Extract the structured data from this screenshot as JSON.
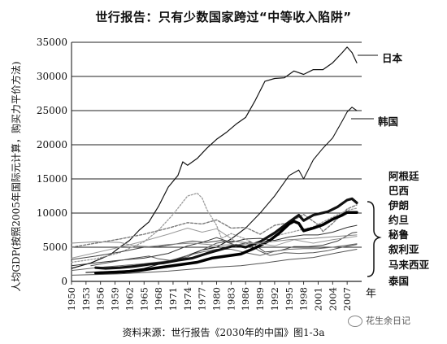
{
  "title": "世行报告：只有少数国家跨过“中等收入陷阱”",
  "source": "资料来源：世行报告《2030年的中国》图1-3a",
  "watermark": "花生余日记",
  "chart_data": {
    "type": "line",
    "ylabel": "人均GDP(按照2005年国际元计算，购买力平价方法)",
    "x_unit": "年",
    "ylim": [
      0,
      35000
    ],
    "xlim": [
      1950,
      2010
    ],
    "y_ticks": [
      0,
      5000,
      10000,
      15000,
      20000,
      25000,
      30000,
      35000
    ],
    "x_ticks": [
      1950,
      1953,
      1956,
      1959,
      1962,
      1965,
      1968,
      1971,
      1974,
      1977,
      1980,
      1983,
      1986,
      1989,
      1992,
      1995,
      1998,
      2001,
      2004,
      2007
    ],
    "grid": "horizontal",
    "series": [
      {
        "name": "日本",
        "color": "#111111",
        "width": 1.2,
        "points": [
          [
            1950,
            1900
          ],
          [
            1952,
            2300
          ],
          [
            1954,
            2700
          ],
          [
            1956,
            3300
          ],
          [
            1958,
            3900
          ],
          [
            1960,
            5000
          ],
          [
            1962,
            6000
          ],
          [
            1964,
            7500
          ],
          [
            1966,
            8700
          ],
          [
            1968,
            11000
          ],
          [
            1970,
            13800
          ],
          [
            1972,
            15500
          ],
          [
            1973,
            17500
          ],
          [
            1974,
            17000
          ],
          [
            1976,
            18000
          ],
          [
            1978,
            19500
          ],
          [
            1980,
            20800
          ],
          [
            1982,
            21800
          ],
          [
            1984,
            23000
          ],
          [
            1986,
            24000
          ],
          [
            1988,
            26500
          ],
          [
            1990,
            29300
          ],
          [
            1992,
            29700
          ],
          [
            1994,
            29800
          ],
          [
            1996,
            30800
          ],
          [
            1998,
            30300
          ],
          [
            2000,
            31000
          ],
          [
            2002,
            31000
          ],
          [
            2004,
            32000
          ],
          [
            2006,
            33500
          ],
          [
            2007,
            34300
          ],
          [
            2008,
            33500
          ],
          [
            2009,
            32000
          ]
        ]
      },
      {
        "name": "韩国",
        "color": "#111111",
        "width": 1.1,
        "points": [
          [
            1953,
            1300
          ],
          [
            1956,
            1400
          ],
          [
            1959,
            1500
          ],
          [
            1962,
            1600
          ],
          [
            1965,
            1900
          ],
          [
            1968,
            2500
          ],
          [
            1971,
            3000
          ],
          [
            1974,
            3800
          ],
          [
            1977,
            4600
          ],
          [
            1980,
            5000
          ],
          [
            1983,
            6200
          ],
          [
            1986,
            7800
          ],
          [
            1989,
            10000
          ],
          [
            1992,
            12500
          ],
          [
            1995,
            15500
          ],
          [
            1997,
            16300
          ],
          [
            1998,
            15000
          ],
          [
            2000,
            17800
          ],
          [
            2002,
            19500
          ],
          [
            2004,
            21000
          ],
          [
            2006,
            23500
          ],
          [
            2007,
            24800
          ],
          [
            2008,
            25500
          ],
          [
            2009,
            25000
          ]
        ]
      },
      {
        "name": "阿根廷",
        "color": "#7a7a7a",
        "width": 1.4,
        "dash": "3,2",
        "points": [
          [
            1950,
            5000
          ],
          [
            1955,
            5600
          ],
          [
            1960,
            6200
          ],
          [
            1965,
            6900
          ],
          [
            1970,
            7800
          ],
          [
            1974,
            8600
          ],
          [
            1977,
            8400
          ],
          [
            1980,
            9000
          ],
          [
            1983,
            7800
          ],
          [
            1986,
            7900
          ],
          [
            1989,
            6900
          ],
          [
            1992,
            8200
          ],
          [
            1995,
            8600
          ],
          [
            1998,
            9800
          ],
          [
            2001,
            8300
          ],
          [
            2002,
            7300
          ],
          [
            2004,
            8500
          ],
          [
            2007,
            10600
          ],
          [
            2009,
            11200
          ]
        ]
      },
      {
        "name": "巴西",
        "color": "#333333",
        "width": 1.0,
        "points": [
          [
            1950,
            2300
          ],
          [
            1955,
            2700
          ],
          [
            1960,
            3100
          ],
          [
            1965,
            3400
          ],
          [
            1970,
            4100
          ],
          [
            1974,
            5200
          ],
          [
            1977,
            5700
          ],
          [
            1980,
            6400
          ],
          [
            1983,
            5700
          ],
          [
            1986,
            6200
          ],
          [
            1989,
            6300
          ],
          [
            1992,
            6000
          ],
          [
            1995,
            6500
          ],
          [
            1998,
            6800
          ],
          [
            2001,
            6800
          ],
          [
            2004,
            7200
          ],
          [
            2007,
            7900
          ],
          [
            2009,
            8200
          ]
        ]
      },
      {
        "name": "伊朗",
        "color": "#9a9a9a",
        "width": 1.3,
        "dash": "2,2",
        "points": [
          [
            1950,
            2800
          ],
          [
            1955,
            3300
          ],
          [
            1960,
            4200
          ],
          [
            1965,
            5800
          ],
          [
            1968,
            7500
          ],
          [
            1971,
            9800
          ],
          [
            1974,
            12500
          ],
          [
            1976,
            12900
          ],
          [
            1977,
            12200
          ],
          [
            1978,
            10500
          ],
          [
            1980,
            8200
          ],
          [
            1981,
            6300
          ],
          [
            1983,
            7000
          ],
          [
            1986,
            6200
          ],
          [
            1988,
            5400
          ],
          [
            1990,
            5800
          ],
          [
            1993,
            6800
          ],
          [
            1996,
            7300
          ],
          [
            2000,
            8000
          ],
          [
            2004,
            9400
          ],
          [
            2007,
            10400
          ],
          [
            2009,
            10700
          ]
        ]
      },
      {
        "name": "约旦",
        "color": "#555555",
        "width": 1.0,
        "points": [
          [
            1954,
            2300
          ],
          [
            1958,
            2800
          ],
          [
            1962,
            3300
          ],
          [
            1966,
            3700
          ],
          [
            1968,
            3300
          ],
          [
            1971,
            3000
          ],
          [
            1974,
            3600
          ],
          [
            1977,
            4600
          ],
          [
            1980,
            5600
          ],
          [
            1983,
            5900
          ],
          [
            1986,
            5700
          ],
          [
            1989,
            4400
          ],
          [
            1991,
            3800
          ],
          [
            1994,
            4200
          ],
          [
            1997,
            4100
          ],
          [
            2000,
            4200
          ],
          [
            2003,
            4500
          ],
          [
            2006,
            5000
          ],
          [
            2009,
            5400
          ]
        ]
      },
      {
        "name": "秘鲁",
        "color": "#444444",
        "width": 1.0,
        "points": [
          [
            1950,
            3200
          ],
          [
            1955,
            3700
          ],
          [
            1960,
            4300
          ],
          [
            1965,
            5000
          ],
          [
            1968,
            5100
          ],
          [
            1971,
            5400
          ],
          [
            1975,
            5900
          ],
          [
            1978,
            5700
          ],
          [
            1981,
            6000
          ],
          [
            1984,
            5300
          ],
          [
            1987,
            5800
          ],
          [
            1990,
            4300
          ],
          [
            1993,
            4500
          ],
          [
            1996,
            5100
          ],
          [
            1999,
            5100
          ],
          [
            2002,
            5300
          ],
          [
            2005,
            5900
          ],
          [
            2008,
            7100
          ],
          [
            2009,
            7200
          ]
        ]
      },
      {
        "name": "叙利亚",
        "color": "#666666",
        "width": 1.0,
        "points": [
          [
            1950,
            1600
          ],
          [
            1955,
            2000
          ],
          [
            1960,
            2300
          ],
          [
            1965,
            2600
          ],
          [
            1970,
            3000
          ],
          [
            1974,
            3800
          ],
          [
            1977,
            4300
          ],
          [
            1980,
            4700
          ],
          [
            1983,
            4700
          ],
          [
            1986,
            4200
          ],
          [
            1989,
            3800
          ],
          [
            1992,
            4400
          ],
          [
            1995,
            4700
          ],
          [
            1998,
            4800
          ],
          [
            2001,
            4800
          ],
          [
            2004,
            5000
          ],
          [
            2007,
            5300
          ],
          [
            2009,
            5500
          ]
        ]
      },
      {
        "name": "马来西亚",
        "color": "#111111",
        "width": 3.2,
        "points": [
          [
            1955,
            2000
          ],
          [
            1957,
            1900
          ],
          [
            1960,
            2000
          ],
          [
            1963,
            2200
          ],
          [
            1966,
            2500
          ],
          [
            1969,
            2700
          ],
          [
            1972,
            3100
          ],
          [
            1975,
            3400
          ],
          [
            1978,
            4100
          ],
          [
            1981,
            4700
          ],
          [
            1984,
            5300
          ],
          [
            1986,
            5000
          ],
          [
            1989,
            5800
          ],
          [
            1992,
            7100
          ],
          [
            1995,
            8700
          ],
          [
            1997,
            9700
          ],
          [
            1998,
            8900
          ],
          [
            2000,
            9700
          ],
          [
            2003,
            10200
          ],
          [
            2005,
            10900
          ],
          [
            2007,
            11900
          ],
          [
            2008,
            12100
          ],
          [
            2009,
            11500
          ]
        ]
      },
      {
        "name": "泰国",
        "color": "#000000",
        "width": 3.5,
        "points": [
          [
            1955,
            1200
          ],
          [
            1958,
            1300
          ],
          [
            1961,
            1400
          ],
          [
            1964,
            1600
          ],
          [
            1967,
            1900
          ],
          [
            1970,
            2200
          ],
          [
            1973,
            2500
          ],
          [
            1976,
            2800
          ],
          [
            1979,
            3400
          ],
          [
            1982,
            3700
          ],
          [
            1985,
            4000
          ],
          [
            1988,
            4900
          ],
          [
            1991,
            6000
          ],
          [
            1993,
            7100
          ],
          [
            1995,
            8400
          ],
          [
            1996,
            8800
          ],
          [
            1997,
            8500
          ],
          [
            1998,
            7400
          ],
          [
            2000,
            7800
          ],
          [
            2002,
            8300
          ],
          [
            2004,
            9100
          ],
          [
            2006,
            9700
          ],
          [
            2007,
            10100
          ],
          [
            2009,
            10100
          ]
        ]
      },
      {
        "name": "",
        "color": "#555555",
        "width": 1.0,
        "points": [
          [
            1950,
            900
          ],
          [
            1955,
            1000
          ],
          [
            1960,
            1100
          ],
          [
            1965,
            1300
          ],
          [
            1970,
            1500
          ],
          [
            1975,
            1800
          ],
          [
            1980,
            2100
          ],
          [
            1985,
            2300
          ],
          [
            1990,
            2700
          ],
          [
            1995,
            3200
          ],
          [
            2000,
            3500
          ],
          [
            2005,
            4200
          ],
          [
            2009,
            4700
          ]
        ]
      },
      {
        "name": "",
        "color": "#888888",
        "width": 1.0,
        "points": [
          [
            1950,
            5600
          ],
          [
            1955,
            5800
          ],
          [
            1960,
            5700
          ],
          [
            1963,
            5200
          ],
          [
            1966,
            5100
          ],
          [
            1970,
            5400
          ],
          [
            1975,
            5600
          ],
          [
            1980,
            5300
          ],
          [
            1985,
            5400
          ],
          [
            1990,
            5700
          ],
          [
            1995,
            6100
          ],
          [
            2000,
            6300
          ],
          [
            2005,
            6600
          ],
          [
            2009,
            6800
          ]
        ]
      },
      {
        "name": "",
        "color": "#9a9a9a",
        "width": 1.0,
        "points": [
          [
            1950,
            3400
          ],
          [
            1955,
            4200
          ],
          [
            1960,
            5000
          ],
          [
            1965,
            5900
          ],
          [
            1970,
            6900
          ],
          [
            1974,
            7800
          ],
          [
            1977,
            7200
          ],
          [
            1980,
            7700
          ],
          [
            1984,
            5800
          ],
          [
            1988,
            5600
          ],
          [
            1992,
            5200
          ],
          [
            1996,
            6100
          ],
          [
            2000,
            5600
          ],
          [
            2004,
            6100
          ],
          [
            2009,
            6600
          ]
        ]
      }
    ],
    "brace_labels": [
      "阿根廷",
      "巴西",
      "伊朗",
      "约旦",
      "秘鲁",
      "叙利亚",
      "马来西亚",
      "泰国"
    ]
  }
}
